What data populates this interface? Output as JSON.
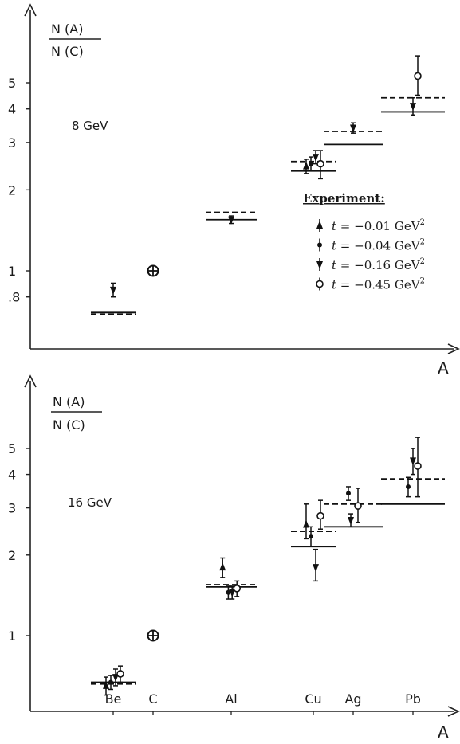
{
  "chart_data": [
    {
      "type": "scatter",
      "panel_label": "8 GeV",
      "ylabel": {
        "num": "N (A)",
        "den": "N (C)"
      },
      "xlabel": "A",
      "y_scale": "log",
      "y_ticks": [
        {
          "value": 0.8,
          "label": ".8"
        },
        {
          "value": 1,
          "label": "1"
        },
        {
          "value": 2,
          "label": "2"
        },
        {
          "value": 3,
          "label": "3"
        },
        {
          "value": 4,
          "label": "4"
        },
        {
          "value": 5,
          "label": "5"
        }
      ],
      "x_categories": [
        "Be",
        "C",
        "Al",
        "Cu",
        "Ag",
        "Pb"
      ],
      "legend": {
        "title": "Experiment:",
        "placement": "right",
        "entries": [
          {
            "marker": "triangle-up",
            "prefix": "t",
            "label": " = −0.01 GeV",
            "sup": "2"
          },
          {
            "marker": "dot",
            "prefix": "t",
            "label": " = −0.04 GeV",
            "sup": "2"
          },
          {
            "marker": "triangle-down",
            "prefix": "t",
            "label": " = −0.16 GeV",
            "sup": "2"
          },
          {
            "marker": "circle-open",
            "prefix": "t",
            "label": " = −0.45 GeV",
            "sup": "2"
          }
        ]
      },
      "theory_solid": [
        {
          "element": "Be",
          "value": 0.7
        },
        {
          "element": "Al",
          "value": 1.55
        },
        {
          "element": "Cu",
          "value": 2.35
        },
        {
          "element": "Ag",
          "value": 2.95
        },
        {
          "element": "Pb",
          "value": 3.9
        }
      ],
      "theory_dashed": [
        {
          "element": "Be",
          "value": 0.69
        },
        {
          "element": "Al",
          "value": 1.65
        },
        {
          "element": "Cu",
          "value": 2.55
        },
        {
          "element": "Ag",
          "value": 3.3
        },
        {
          "element": "Pb",
          "value": 4.4
        }
      ],
      "reference": {
        "element": "C",
        "value": 1.0,
        "marker": "circle-cross"
      },
      "points": [
        {
          "element": "Be",
          "offset": 0,
          "marker": "triangle-down",
          "value": 0.85,
          "err_low": 0.05,
          "err_high": 0.05
        },
        {
          "element": "Al",
          "offset": 0,
          "marker": "triangle-down",
          "value": 1.55,
          "err_low": 0.05,
          "err_high": 0.05
        },
        {
          "element": "Cu",
          "offset": -1.5,
          "marker": "triangle-up",
          "value": 2.45,
          "err_low": 0.15,
          "err_high": 0.15
        },
        {
          "element": "Cu",
          "offset": -0.5,
          "marker": "dot",
          "value": 2.5,
          "err_low": 0.15,
          "err_high": 0.15
        },
        {
          "element": "Cu",
          "offset": 0.5,
          "marker": "triangle-down",
          "value": 2.65,
          "err_low": 0.15,
          "err_high": 0.15
        },
        {
          "element": "Cu",
          "offset": 1.5,
          "marker": "circle-open",
          "value": 2.5,
          "err_low": 0.3,
          "err_high": 0.3
        },
        {
          "element": "Ag",
          "offset": 0,
          "marker": "triangle-down",
          "value": 3.4,
          "err_low": 0.15,
          "err_high": 0.15
        },
        {
          "element": "Pb",
          "offset": 0,
          "marker": "triangle-down",
          "value": 4.1,
          "err_low": 0.3,
          "err_high": 0.3
        },
        {
          "element": "Pb",
          "offset": 1,
          "marker": "circle-open",
          "value": 5.3,
          "err_low": 0.8,
          "err_high": 1.0
        }
      ]
    },
    {
      "type": "scatter",
      "panel_label": "16 GeV",
      "ylabel": {
        "num": "N (A)",
        "den": "N (C)"
      },
      "xlabel": "A",
      "y_scale": "log",
      "y_ticks": [
        {
          "value": 1,
          "label": "1"
        },
        {
          "value": 2,
          "label": "2"
        },
        {
          "value": 3,
          "label": "3"
        },
        {
          "value": 4,
          "label": "4"
        },
        {
          "value": 5,
          "label": "5"
        }
      ],
      "x_categories": [
        "Be",
        "C",
        "Al",
        "Cu",
        "Ag",
        "Pb"
      ],
      "theory_solid": [
        {
          "element": "Be",
          "value": 0.67
        },
        {
          "element": "Al",
          "value": 1.52
        },
        {
          "element": "Cu",
          "value": 2.15
        },
        {
          "element": "Ag",
          "value": 2.55
        },
        {
          "element": "Pb",
          "value": 3.1
        }
      ],
      "theory_dashed": [
        {
          "element": "Be",
          "value": 0.66
        },
        {
          "element": "Al",
          "value": 1.55
        },
        {
          "element": "Cu",
          "value": 2.45
        },
        {
          "element": "Ag",
          "value": 3.1
        },
        {
          "element": "Pb",
          "value": 3.85
        }
      ],
      "reference": {
        "element": "C",
        "value": 1.0,
        "marker": "circle-cross"
      },
      "points": [
        {
          "element": "Be",
          "offset": -1.5,
          "marker": "triangle-up",
          "value": 0.65,
          "err_low": 0.05,
          "err_high": 0.05
        },
        {
          "element": "Be",
          "offset": -0.5,
          "marker": "dot",
          "value": 0.67,
          "err_low": 0.04,
          "err_high": 0.04
        },
        {
          "element": "Be",
          "offset": 0.5,
          "marker": "triangle-down",
          "value": 0.7,
          "err_low": 0.05,
          "err_high": 0.05
        },
        {
          "element": "Be",
          "offset": 1.5,
          "marker": "circle-open",
          "value": 0.72,
          "err_low": 0.05,
          "err_high": 0.05
        },
        {
          "element": "Al",
          "offset": -1.8,
          "marker": "triangle-up",
          "value": 1.8,
          "err_low": 0.15,
          "err_high": 0.15
        },
        {
          "element": "Al",
          "offset": -0.6,
          "marker": "dot",
          "value": 1.45,
          "err_low": 0.08,
          "err_high": 0.08
        },
        {
          "element": "Al",
          "offset": 0.2,
          "marker": "triangle-down",
          "value": 1.45,
          "err_low": 0.08,
          "err_high": 0.08
        },
        {
          "element": "Al",
          "offset": 1.2,
          "marker": "circle-open",
          "value": 1.5,
          "err_low": 0.1,
          "err_high": 0.1
        },
        {
          "element": "Cu",
          "offset": -1.5,
          "marker": "triangle-up",
          "value": 2.6,
          "err_low": 0.3,
          "err_high": 0.5
        },
        {
          "element": "Cu",
          "offset": -0.5,
          "marker": "dot",
          "value": 2.35,
          "err_low": 0.2,
          "err_high": 0.2
        },
        {
          "element": "Cu",
          "offset": 0.5,
          "marker": "triangle-down",
          "value": 1.8,
          "err_low": 0.2,
          "err_high": 0.3
        },
        {
          "element": "Cu",
          "offset": 1.5,
          "marker": "circle-open",
          "value": 2.8,
          "err_low": 0.3,
          "err_high": 0.4
        },
        {
          "element": "Ag",
          "offset": -1,
          "marker": "dot",
          "value": 3.4,
          "err_low": 0.2,
          "err_high": 0.2
        },
        {
          "element": "Ag",
          "offset": -0.5,
          "marker": "triangle-down",
          "value": 2.7,
          "err_low": 0.15,
          "err_high": 0.15
        },
        {
          "element": "Ag",
          "offset": 1,
          "marker": "circle-open",
          "value": 3.05,
          "err_low": 0.4,
          "err_high": 0.5
        },
        {
          "element": "Pb",
          "offset": -1,
          "marker": "dot",
          "value": 3.6,
          "err_low": 0.3,
          "err_high": 0.3
        },
        {
          "element": "Pb",
          "offset": 0,
          "marker": "triangle-down",
          "value": 4.5,
          "err_low": 0.5,
          "err_high": 0.5
        },
        {
          "element": "Pb",
          "offset": 1,
          "marker": "circle-open",
          "value": 4.3,
          "err_low": 1.0,
          "err_high": 1.2
        }
      ]
    }
  ]
}
